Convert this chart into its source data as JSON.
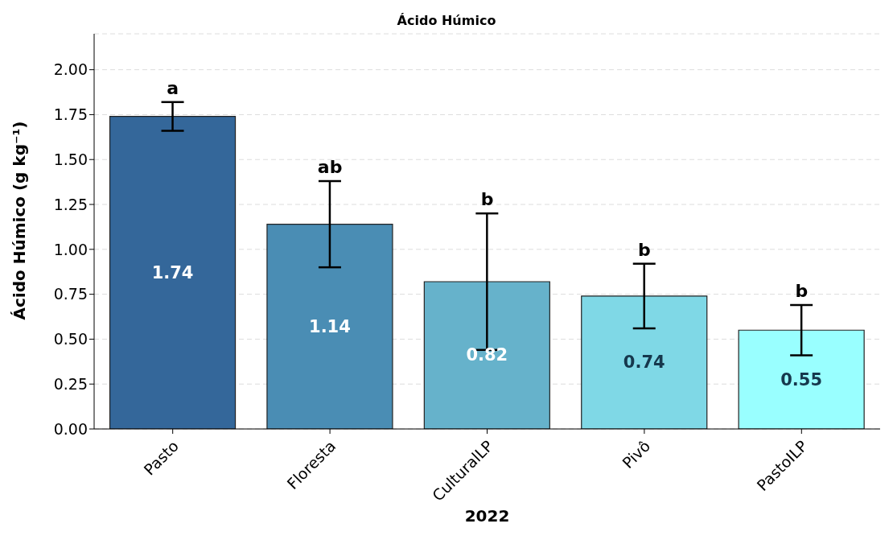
{
  "chart_data": {
    "type": "bar",
    "title": "Ácido Húmico",
    "xlabel": "2022",
    "ylabel": "Ácido Húmico (g kg⁻¹)",
    "categories": [
      "Pasto",
      "Floresta",
      "CulturalLP",
      "Pivô",
      "PastoILP"
    ],
    "values": [
      1.74,
      1.14,
      0.82,
      0.74,
      0.55
    ],
    "colors": [
      "#34679a",
      "#4a8db4",
      "#66b2cb",
      "#7fd8e6",
      "#99ffff"
    ],
    "errors": [
      0.08,
      0.24,
      0.38,
      0.18,
      0.14
    ],
    "data_labels": true,
    "ylim": [
      0,
      2.2
    ],
    "yticks": [
      {
        "value": 0,
        "label": "0.00"
      },
      {
        "value": 0.25,
        "label": "0.25"
      },
      {
        "value": 0.5,
        "label": "0.50"
      },
      {
        "value": 0.75,
        "label": "0.75"
      },
      {
        "value": 1,
        "label": "1.00"
      },
      {
        "value": 1.25,
        "label": "1.25"
      },
      {
        "value": 1.5,
        "label": "1.50"
      },
      {
        "value": 1.75,
        "label": "1.75"
      },
      {
        "value": 2,
        "label": "2.00"
      }
    ],
    "grid": "y",
    "annotations": [
      {
        "text": "a",
        "x": "Pasto",
        "y": 1.82
      },
      {
        "text": "ab",
        "x": "Floresta",
        "y": 1.38
      },
      {
        "text": "b",
        "x": "CulturalLP",
        "y": 1.2
      },
      {
        "text": "b",
        "x": "Pivô",
        "y": 0.92
      },
      {
        "text": "b",
        "x": "PastoILP",
        "y": 0.69
      }
    ]
  }
}
